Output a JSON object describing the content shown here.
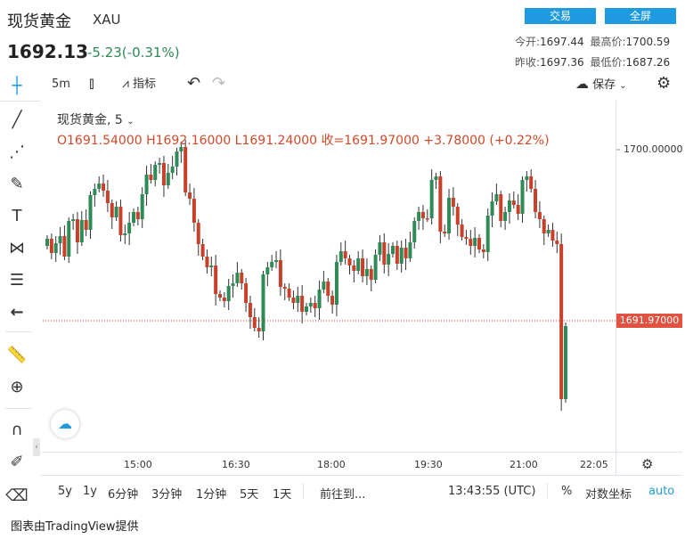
{
  "header": {
    "title": "现货黄金",
    "symbol": "XAU",
    "price": "1692.13",
    "change": "-5.23(-0.31%)",
    "trade_label": "交易",
    "fullscreen_label": "全屏",
    "open_label": "今开:",
    "open_value": "1697.44",
    "high_label": "最高价:",
    "high_value": "1700.59",
    "prev_close_label": "昨收:",
    "prev_close_value": "1697.36",
    "low_label": "最低价:",
    "low_value": "1687.26"
  },
  "toolbar": {
    "interval": "5m",
    "indicators_label": "指标",
    "save_label": "保存"
  },
  "legend": {
    "line1": "现货黄金, 5",
    "line2": "O1691.54000   H1692.16000   L1691.24000   收=1691.97000   +3.78000 (+0.22%)"
  },
  "axis": {
    "y_label": "1700.00000",
    "price_tag": "1691.97000",
    "x_ticks": [
      "15:00",
      "16:30",
      "18:00",
      "19:30",
      "21:00",
      "22:05"
    ]
  },
  "bottom_bar": {
    "ranges": [
      "5y",
      "1y",
      "6分钟",
      "3分钟",
      "1分钟",
      "5天",
      "1天"
    ],
    "goto_label": "前往到...",
    "time": "13:43:55 (UTC)",
    "percent_label": "%",
    "log_label": "对数坐标",
    "auto_label": "auto"
  },
  "footer": "图表由TradingView提供",
  "colors": {
    "up": "#2e8b57",
    "down": "#c8402a",
    "accent": "#1e9be0"
  },
  "chart_data": {
    "type": "candlestick",
    "current_price": 1691.97,
    "ylabel": "",
    "y_tick": 1700.0,
    "x_ticks": [
      "15:00",
      "16:30",
      "18:00",
      "19:30",
      "21:00",
      "22:05"
    ]
  }
}
